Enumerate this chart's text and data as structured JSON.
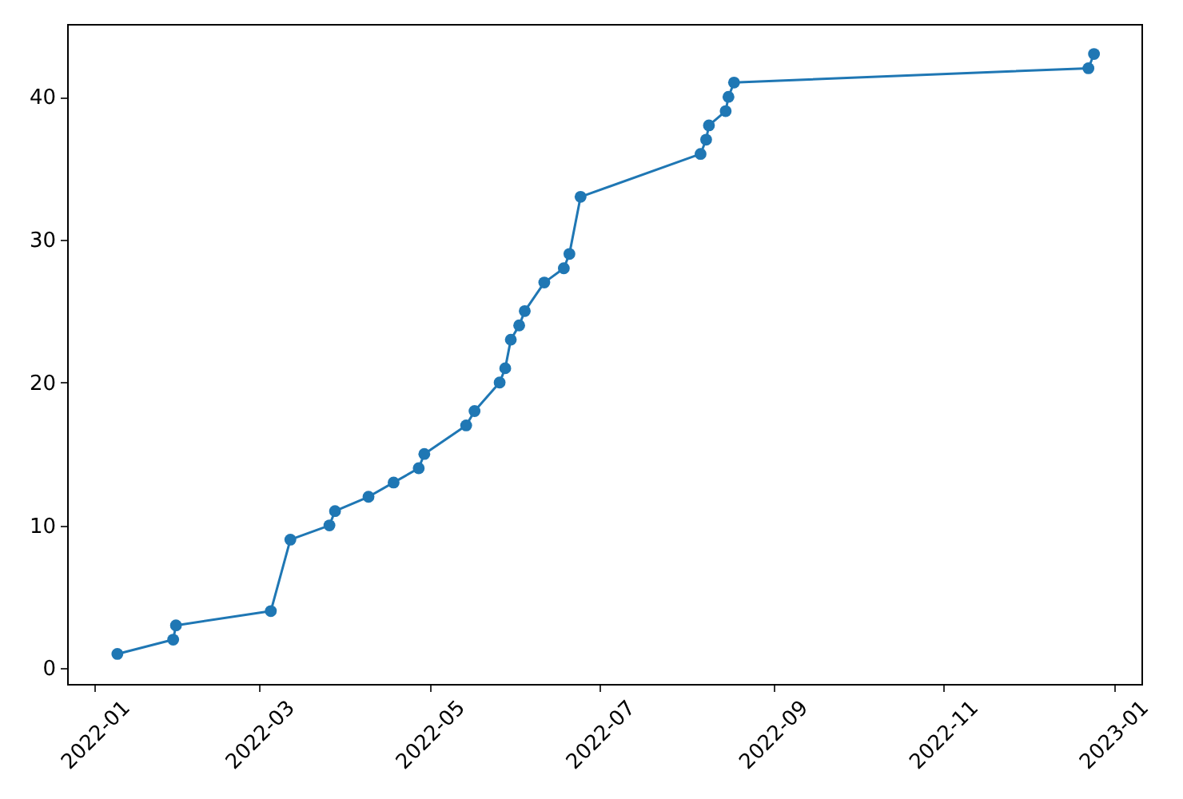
{
  "chart_data": {
    "type": "line",
    "x": [
      "2022-01-09",
      "2022-01-29",
      "2022-01-30",
      "2022-03-05",
      "2022-03-12",
      "2022-03-26",
      "2022-03-28",
      "2022-04-09",
      "2022-04-18",
      "2022-04-27",
      "2022-04-29",
      "2022-05-14",
      "2022-05-17",
      "2022-05-26",
      "2022-05-28",
      "2022-05-30",
      "2022-06-02",
      "2022-06-04",
      "2022-06-11",
      "2022-06-18",
      "2022-06-20",
      "2022-06-24",
      "2022-08-06",
      "2022-08-08",
      "2022-08-09",
      "2022-08-15",
      "2022-08-16",
      "2022-08-18",
      "2022-12-23",
      "2022-12-25"
    ],
    "series": [
      {
        "color": "#1f77b4",
        "values": [
          1,
          2,
          3,
          4,
          9,
          10,
          11,
          12,
          13,
          14,
          15,
          17,
          18,
          20,
          21,
          23,
          24,
          25,
          27,
          28,
          29,
          33,
          36,
          37,
          38,
          39,
          40,
          41,
          42,
          43
        ]
      }
    ],
    "xlim": [
      "2021-12-22",
      "2023-01-11"
    ],
    "xticks": [
      "2022-01",
      "2022-03",
      "2022-05",
      "2022-07",
      "2022-09",
      "2022-11",
      "2023-01"
    ],
    "ylim": [
      -1.1,
      45.1
    ],
    "yticks": [
      0,
      10,
      20,
      30,
      40
    ],
    "marker": "circle",
    "line_style": "solid",
    "grid": false
  }
}
